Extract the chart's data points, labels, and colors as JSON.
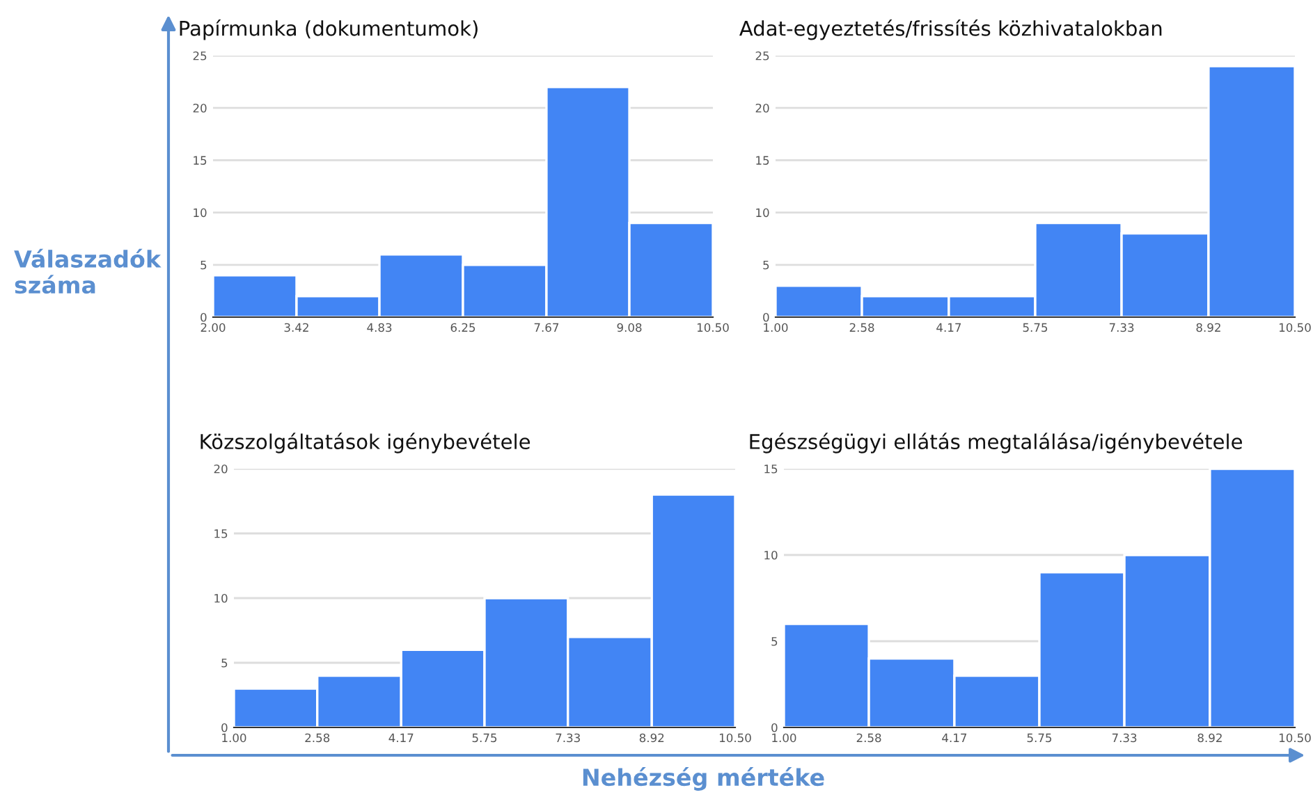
{
  "chart_data": [
    {
      "type": "histogram",
      "title": "Papírmunka (dokumentumok)",
      "ylabel": "Válaszadók száma",
      "bins": [
        2.0,
        3.42,
        4.83,
        6.25,
        7.67,
        9.08,
        10.5
      ],
      "values": [
        4,
        2,
        6,
        5,
        22,
        9
      ],
      "color": "#4285f4",
      "xlim": [
        2.0,
        10.5
      ],
      "xticks": [
        {
          "value": 2.0,
          "label": "2.00"
        },
        {
          "value": 3.42,
          "label": "3.42"
        },
        {
          "value": 4.83,
          "label": "4.83"
        },
        {
          "value": 6.25,
          "label": "6.25"
        },
        {
          "value": 7.67,
          "label": "7.67"
        },
        {
          "value": 9.08,
          "label": "9.08"
        },
        {
          "value": 10.5,
          "label": "10.50"
        }
      ],
      "ylim": [
        0,
        25
      ],
      "yticks": [
        0,
        5,
        10,
        15,
        20,
        25
      ],
      "grid": "y"
    },
    {
      "type": "histogram",
      "title": "Adat-egyeztetés/frissítés közhivatalokban",
      "bins": [
        1.0,
        2.58,
        4.17,
        5.75,
        7.33,
        8.92,
        10.5
      ],
      "values": [
        3,
        2,
        2,
        9,
        8,
        24
      ],
      "color": "#4285f4",
      "xlim": [
        1.0,
        10.5
      ],
      "xticks": [
        {
          "value": 1.0,
          "label": "1.00"
        },
        {
          "value": 2.58,
          "label": "2.58"
        },
        {
          "value": 4.17,
          "label": "4.17"
        },
        {
          "value": 5.75,
          "label": "5.75"
        },
        {
          "value": 7.33,
          "label": "7.33"
        },
        {
          "value": 8.92,
          "label": "8.92"
        },
        {
          "value": 10.5,
          "label": "10.50"
        }
      ],
      "ylim": [
        0,
        25
      ],
      "yticks": [
        0,
        5,
        10,
        15,
        20,
        25
      ],
      "grid": "y"
    },
    {
      "type": "histogram",
      "title": "Közszolgáltatások igénybevétele",
      "bins": [
        1.0,
        2.58,
        4.17,
        5.75,
        7.33,
        8.92,
        10.5
      ],
      "values": [
        3,
        4,
        6,
        10,
        7,
        18
      ],
      "color": "#4285f4",
      "xlim": [
        1.0,
        10.5
      ],
      "xticks": [
        {
          "value": 1.0,
          "label": "1.00"
        },
        {
          "value": 2.58,
          "label": "2.58"
        },
        {
          "value": 4.17,
          "label": "4.17"
        },
        {
          "value": 5.75,
          "label": "5.75"
        },
        {
          "value": 7.33,
          "label": "7.33"
        },
        {
          "value": 8.92,
          "label": "8.92"
        },
        {
          "value": 10.5,
          "label": "10.50"
        }
      ],
      "ylim": [
        0,
        20
      ],
      "yticks": [
        0,
        5,
        10,
        15,
        20
      ],
      "grid": "y"
    },
    {
      "type": "histogram",
      "title": "Egészségügyi ellátás megtalálása/igénybevétele",
      "xlabel": "Nehézség mértéke",
      "bins": [
        1.0,
        2.58,
        4.17,
        5.75,
        7.33,
        8.92,
        10.5
      ],
      "values": [
        6,
        4,
        3,
        9,
        10,
        15
      ],
      "color": "#4285f4",
      "xlim": [
        1.0,
        10.5
      ],
      "xticks": [
        {
          "value": 1.0,
          "label": "1.00"
        },
        {
          "value": 2.58,
          "label": "2.58"
        },
        {
          "value": 4.17,
          "label": "4.17"
        },
        {
          "value": 5.75,
          "label": "5.75"
        },
        {
          "value": 7.33,
          "label": "7.33"
        },
        {
          "value": 8.92,
          "label": "8.92"
        },
        {
          "value": 10.5,
          "label": "10.50"
        }
      ],
      "ylim": [
        0,
        15
      ],
      "yticks": [
        0,
        5,
        10,
        15
      ],
      "grid": "y"
    }
  ]
}
